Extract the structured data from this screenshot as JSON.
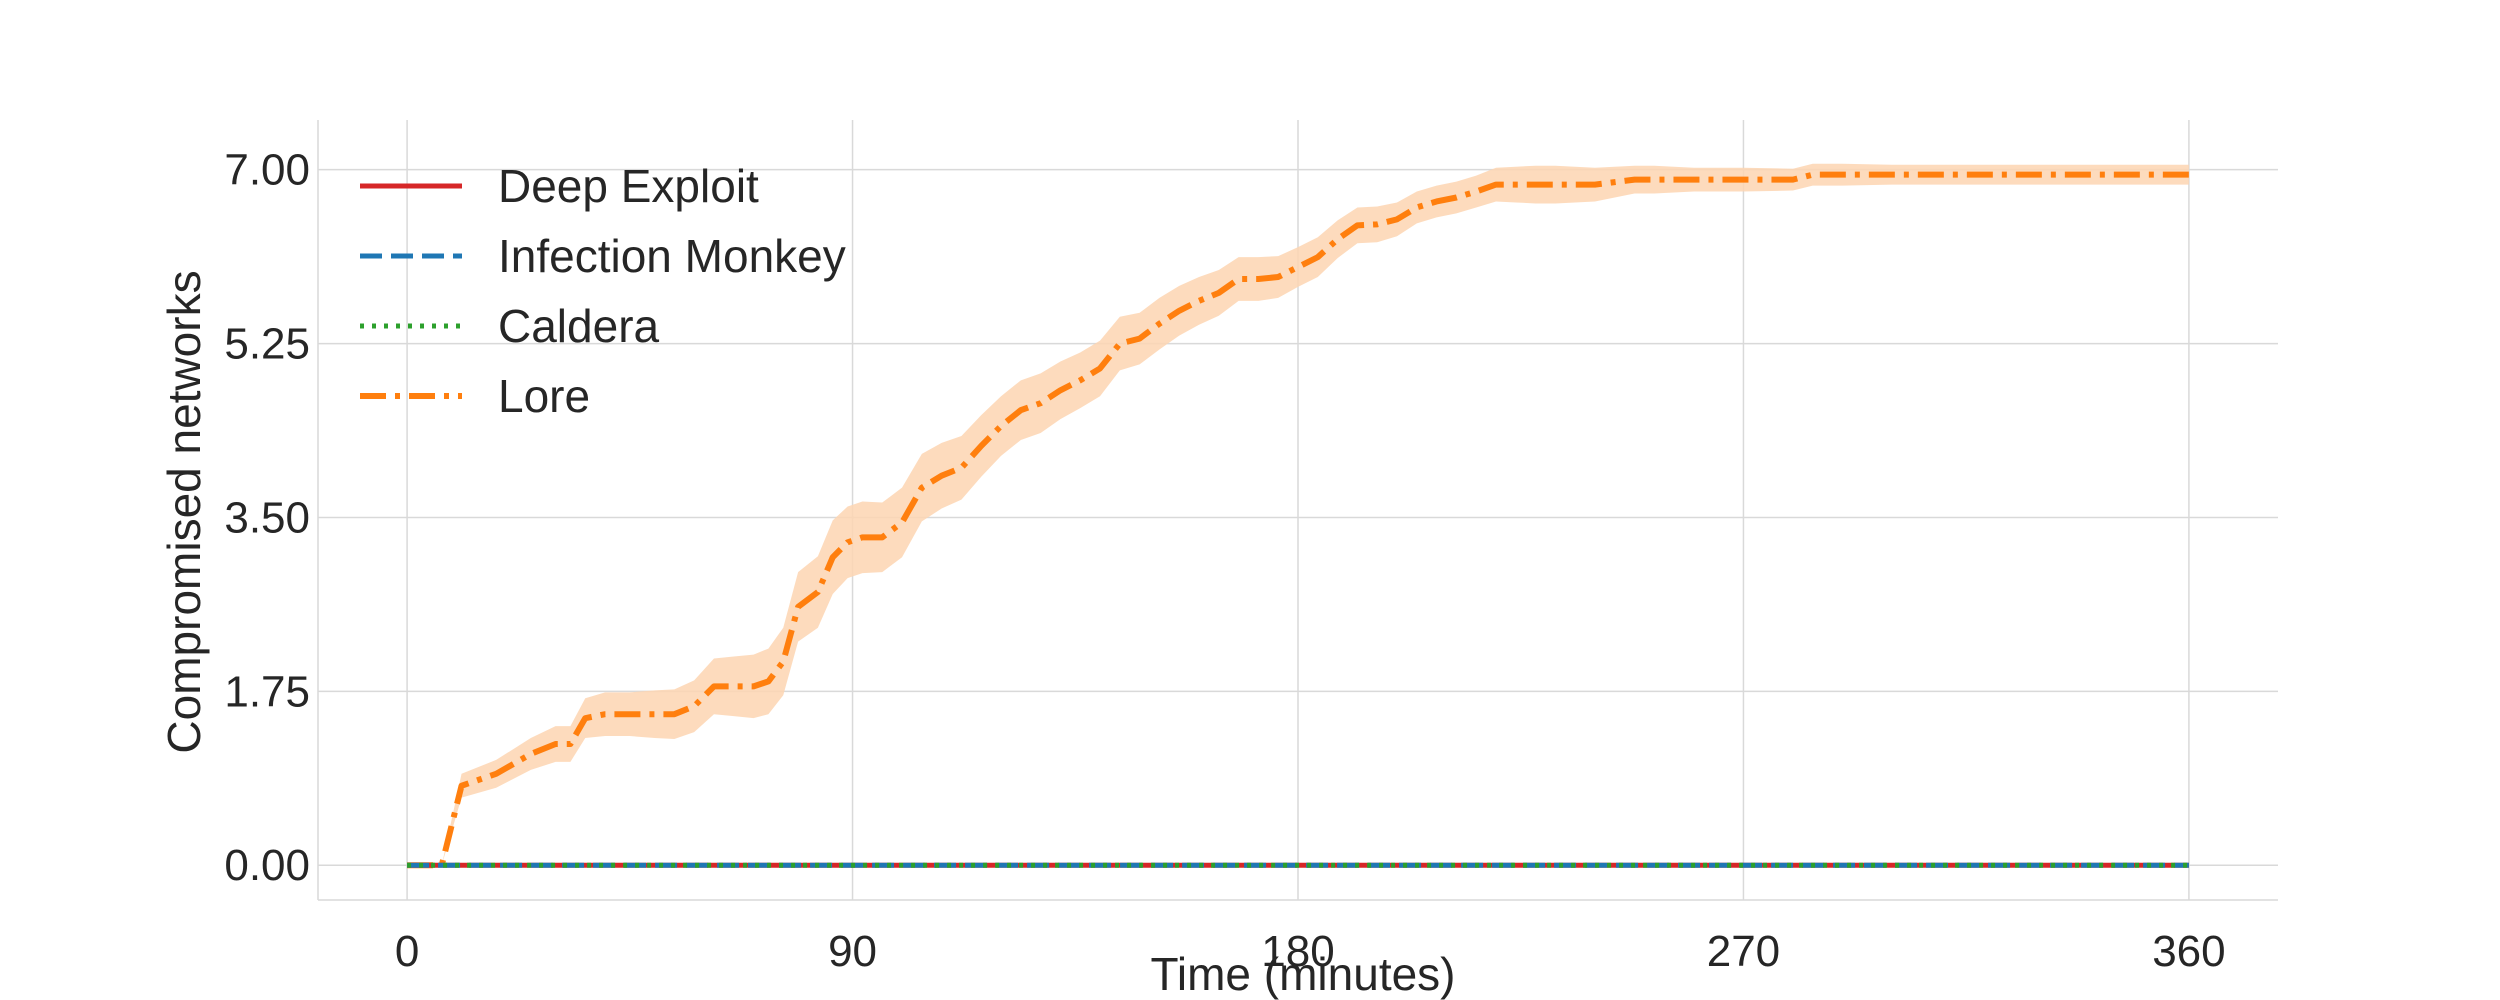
{
  "chart_data": {
    "type": "line",
    "title": "",
    "xlabel": "Time (minutes)",
    "ylabel": "Compromised networks",
    "xlim": [
      -18,
      378
    ],
    "ylim": [
      -0.35,
      7.5
    ],
    "xticks": [
      0,
      90,
      180,
      270,
      360
    ],
    "yticks": [
      "0.00",
      "1.75",
      "3.50",
      "5.25",
      "7.00"
    ],
    "grid": true,
    "legend_position": "top-left",
    "series": [
      {
        "name": "Deep Exploit",
        "color": "#d62728",
        "style": "solid",
        "x": [
          0,
          360
        ],
        "y": [
          0,
          0
        ]
      },
      {
        "name": "Infection Monkey",
        "color": "#1f77b4",
        "style": "dashed",
        "x": [
          0,
          360
        ],
        "y": [
          0,
          0
        ]
      },
      {
        "name": "Caldera",
        "color": "#2ca02c",
        "style": "dotted",
        "x": [
          0,
          360
        ],
        "y": [
          0,
          0
        ]
      },
      {
        "name": "Lore",
        "color": "#ff7f0e",
        "style": "dashdot",
        "band_color": "#fdd5b1",
        "x": [
          0,
          7,
          11,
          18,
          25,
          30,
          33,
          36,
          40,
          45,
          50,
          54,
          58,
          62,
          66,
          70,
          73,
          76,
          79,
          83,
          86,
          89,
          92,
          96,
          100,
          104,
          108,
          112,
          116,
          120,
          124,
          128,
          132,
          136,
          140,
          144,
          148,
          152,
          156,
          160,
          164,
          168,
          172,
          176,
          180,
          184,
          188,
          192,
          196,
          200,
          204,
          208,
          212,
          216,
          220,
          224,
          228,
          232,
          236,
          240,
          248,
          252,
          260,
          270,
          280,
          284,
          290,
          300,
          320,
          340,
          360
        ],
        "y": [
          0,
          0,
          0.8,
          0.92,
          1.12,
          1.22,
          1.22,
          1.48,
          1.52,
          1.52,
          1.52,
          1.52,
          1.6,
          1.8,
          1.8,
          1.8,
          1.85,
          2.05,
          2.6,
          2.75,
          3.1,
          3.25,
          3.3,
          3.3,
          3.45,
          3.8,
          3.92,
          4.0,
          4.22,
          4.42,
          4.58,
          4.65,
          4.78,
          4.88,
          5.0,
          5.25,
          5.3,
          5.45,
          5.58,
          5.68,
          5.76,
          5.9,
          5.9,
          5.92,
          6.02,
          6.12,
          6.3,
          6.44,
          6.45,
          6.5,
          6.62,
          6.68,
          6.72,
          6.78,
          6.85,
          6.85,
          6.85,
          6.85,
          6.85,
          6.85,
          6.9,
          6.9,
          6.9,
          6.9,
          6.9,
          6.95,
          6.95,
          6.95,
          6.95,
          6.95,
          6.95
        ],
        "band_halfwidth": [
          0,
          0,
          0.12,
          0.14,
          0.16,
          0.18,
          0.18,
          0.2,
          0.22,
          0.22,
          0.24,
          0.25,
          0.26,
          0.28,
          0.3,
          0.32,
          0.33,
          0.34,
          0.35,
          0.36,
          0.37,
          0.36,
          0.36,
          0.35,
          0.35,
          0.34,
          0.33,
          0.32,
          0.31,
          0.3,
          0.3,
          0.3,
          0.29,
          0.28,
          0.28,
          0.27,
          0.26,
          0.26,
          0.25,
          0.24,
          0.23,
          0.22,
          0.22,
          0.21,
          0.2,
          0.2,
          0.19,
          0.18,
          0.18,
          0.17,
          0.16,
          0.16,
          0.16,
          0.16,
          0.17,
          0.18,
          0.19,
          0.19,
          0.18,
          0.17,
          0.14,
          0.14,
          0.12,
          0.12,
          0.11,
          0.11,
          0.11,
          0.1,
          0.1,
          0.1,
          0.1
        ]
      }
    ]
  }
}
